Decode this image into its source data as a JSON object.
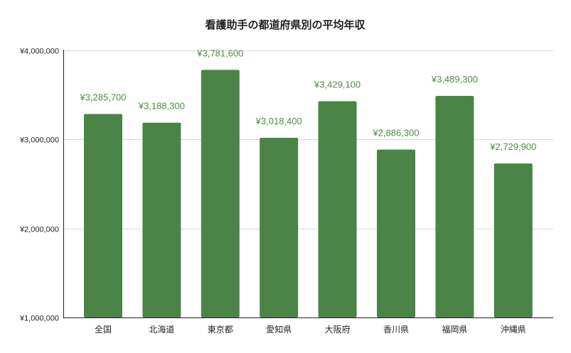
{
  "chart_data": {
    "type": "bar",
    "title": "看護助手の都道府県別の平均年収",
    "xlabel": "",
    "ylabel": "",
    "categories": [
      "全国",
      "北海道",
      "東京都",
      "愛知県",
      "大阪府",
      "香川県",
      "福岡県",
      "沖縄県"
    ],
    "values": [
      3285700,
      3188300,
      3781600,
      3018400,
      3429100,
      2886300,
      3489300,
      2729900
    ],
    "data_labels": [
      "¥3,285,700",
      "¥3,188,300",
      "¥3,781,600",
      "¥3,018,400",
      "¥3,429,100",
      "¥2,886,300",
      "¥3,489,300",
      "¥2,729,900"
    ],
    "ylim": [
      1000000,
      4000000
    ],
    "yticks": [
      1000000,
      2000000,
      3000000,
      4000000
    ],
    "ytick_labels": [
      "¥1,000,000",
      "¥2,000,000",
      "¥3,000,000",
      "¥4,000,000"
    ],
    "grid": true,
    "legend": "none",
    "colors": {
      "bar": "#4a8447",
      "label": "#4a8c45",
      "grid": "#d9d9d9",
      "axis": "#222222"
    }
  }
}
